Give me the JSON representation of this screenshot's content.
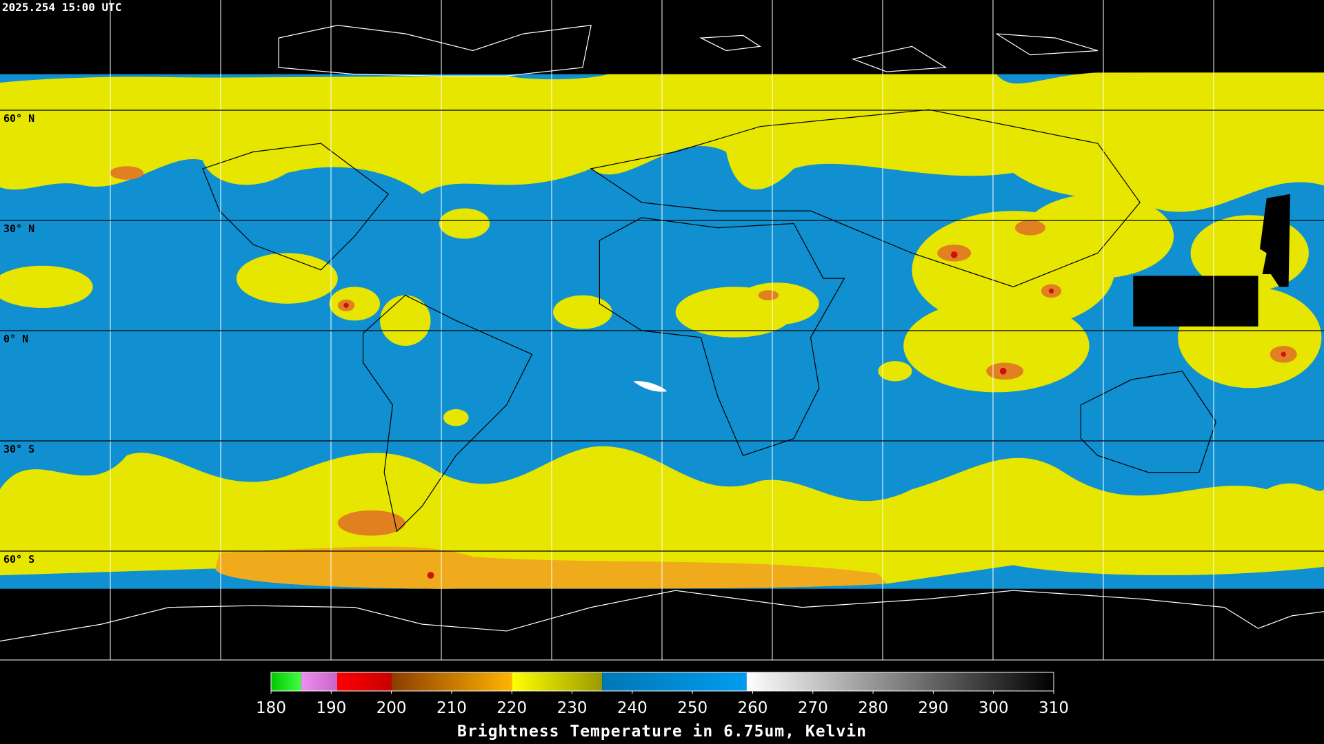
{
  "timestamp": "2025.254 15:00 UTC",
  "map": {
    "lat_lines": [
      {
        "value": 60,
        "label": "60° N"
      },
      {
        "value": 30,
        "label": "30° N"
      },
      {
        "value": 0,
        "label": "0° N"
      },
      {
        "value": -30,
        "label": "30° S"
      },
      {
        "value": -60,
        "label": "60° S"
      }
    ],
    "lon_lines": [
      -150,
      -120,
      -90,
      -60,
      -30,
      0,
      30,
      60,
      90,
      120,
      150
    ]
  },
  "colorbar": {
    "lim": [
      180,
      310
    ],
    "ticks": [
      180,
      190,
      200,
      210,
      220,
      230,
      240,
      250,
      260,
      270,
      280,
      290,
      300,
      310
    ],
    "segments": [
      {
        "from": 180,
        "to": 185,
        "colors": [
          "#00c800",
          "#40ff40"
        ]
      },
      {
        "from": 185,
        "to": 191,
        "colors": [
          "#f090f0",
          "#c864c8"
        ]
      },
      {
        "from": 191,
        "to": 200,
        "colors": [
          "#ff0000",
          "#c80000"
        ]
      },
      {
        "from": 200,
        "to": 220,
        "colors": [
          "#8c3c00",
          "#ffb400"
        ]
      },
      {
        "from": 220,
        "to": 235,
        "colors": [
          "#ffff00",
          "#9a9a00"
        ]
      },
      {
        "from": 235,
        "to": 259,
        "colors": [
          "#0078b4",
          "#009cf0"
        ]
      },
      {
        "from": 259,
        "to": 310,
        "colors": [
          "#ffffff",
          "#000000"
        ]
      }
    ],
    "label": "Brightness Temperature in 6.75um, Kelvin"
  }
}
